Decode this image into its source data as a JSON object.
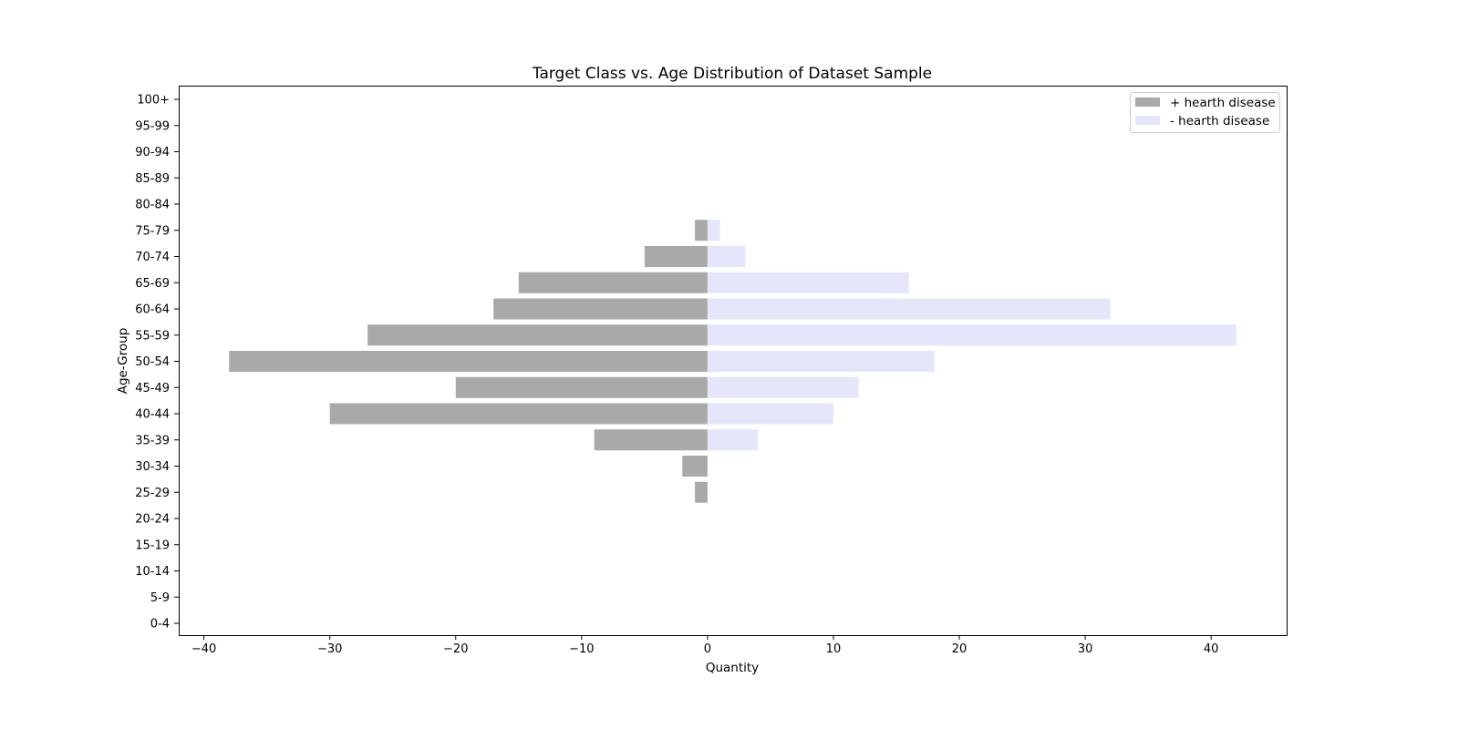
{
  "chart_data": {
    "type": "bar",
    "orientation": "horizontal",
    "title": "Target Class vs. Age Distribution of Dataset Sample",
    "xlabel": "Quantity",
    "ylabel": "Age-Group",
    "xlim": [
      -42,
      46
    ],
    "xticks": [
      -40,
      -30,
      -20,
      -10,
      0,
      10,
      20,
      30,
      40
    ],
    "xtick_labels": [
      "−40",
      "−30",
      "−20",
      "−10",
      "0",
      "10",
      "20",
      "30",
      "40"
    ],
    "categories": [
      "0-4",
      "5-9",
      "10-14",
      "15-19",
      "20-24",
      "25-29",
      "30-34",
      "35-39",
      "40-44",
      "45-49",
      "50-54",
      "55-59",
      "60-64",
      "65-69",
      "70-74",
      "75-79",
      "80-84",
      "85-89",
      "90-94",
      "95-99",
      "100+"
    ],
    "series": [
      {
        "name": "+ hearth disease",
        "color": "#a9a9a9",
        "values": [
          0,
          0,
          0,
          0,
          0,
          -1,
          -2,
          -9,
          -30,
          -20,
          -38,
          -27,
          -17,
          -15,
          -5,
          -1,
          0,
          0,
          0,
          0,
          0
        ]
      },
      {
        "name": "- hearth disease",
        "color": "#e6e6fa",
        "values": [
          0,
          0,
          0,
          0,
          0,
          0,
          0,
          4,
          10,
          12,
          18,
          42,
          32,
          16,
          3,
          1,
          0,
          0,
          0,
          0,
          0
        ]
      }
    ],
    "legend_position": "top-right",
    "grid": false
  }
}
